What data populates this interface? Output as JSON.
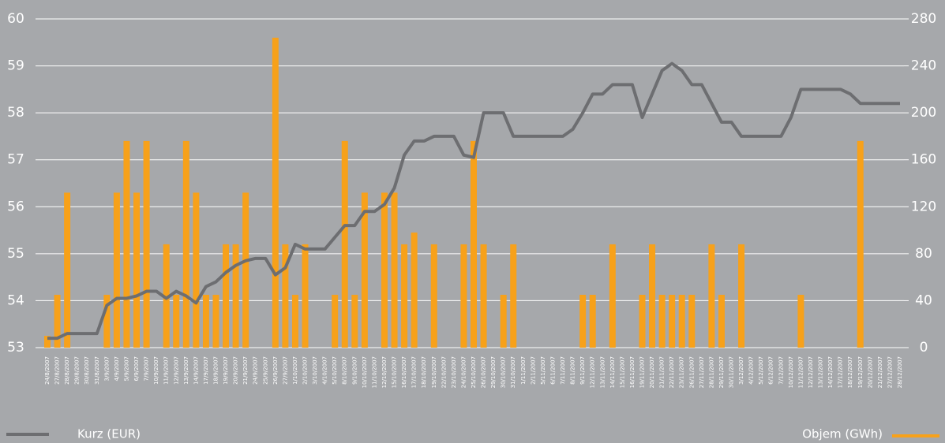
{
  "chart_data": {
    "type": "bar",
    "categories": [
      "24/8/2007",
      "27/8/2007",
      "28/8/2007",
      "29/8/2007",
      "30/8/2007",
      "31/8/2007",
      "3/9/2007",
      "4/9/2007",
      "5/9/2007",
      "6/9/2007",
      "7/9/2007",
      "10/9/2007",
      "11/9/2007",
      "12/9/2007",
      "13/9/2007",
      "14/9/2007",
      "17/9/2007",
      "18/9/2007",
      "19/9/2007",
      "20/9/2007",
      "21/9/2007",
      "24/9/2007",
      "25/9/2007",
      "26/9/2007",
      "27/9/2007",
      "1/10/2007",
      "2/10/2007",
      "3/10/2007",
      "4/10/2007",
      "5/10/2007",
      "8/10/2007",
      "9/10/2007",
      "10/10/2007",
      "11/10/2007",
      "12/10/2007",
      "15/10/2007",
      "16/10/2007",
      "17/10/2007",
      "18/10/2007",
      "19/10/2007",
      "22/10/2007",
      "23/10/2007",
      "24/10/2007",
      "25/10/2007",
      "26/10/2007",
      "29/10/2007",
      "30/10/2007",
      "31/10/2007",
      "1/11/2007",
      "2/11/2007",
      "5/11/2007",
      "6/11/2007",
      "7/11/2007",
      "8/11/2007",
      "9/11/2007",
      "12/11/2007",
      "13/11/2007",
      "14/11/2007",
      "15/11/2007",
      "16/11/2007",
      "19/11/2007",
      "20/11/2007",
      "21/11/2007",
      "22/11/2007",
      "23/11/2007",
      "26/11/2007",
      "27/11/2007",
      "28/11/2007",
      "29/11/2007",
      "30/11/2007",
      "3/12/2007",
      "4/12/2007",
      "5/12/2007",
      "6/12/2007",
      "7/12/2007",
      "10/12/2007",
      "11/12/2007",
      "12/12/2007",
      "13/12/2007",
      "14/12/2007",
      "17/12/2007",
      "18/12/2007",
      "19/12/2007",
      "20/12/2007",
      "21/12/2007",
      "27/12/2007",
      "28/12/2007"
    ],
    "series": [
      {
        "name": "Kurz (EUR)",
        "type": "line",
        "axis": "y",
        "color": "#6d6e71",
        "values": [
          53.2,
          53.2,
          53.3,
          53.3,
          53.3,
          53.3,
          53.9,
          54.05,
          54.05,
          54.1,
          54.2,
          54.2,
          54.05,
          54.2,
          54.1,
          53.95,
          54.3,
          54.4,
          54.6,
          54.75,
          54.85,
          54.9,
          54.9,
          54.55,
          54.7,
          55.2,
          55.1,
          55.1,
          55.1,
          55.35,
          55.6,
          55.6,
          55.9,
          55.9,
          56.05,
          56.4,
          57.1,
          57.4,
          57.4,
          57.5,
          57.5,
          57.5,
          57.1,
          57.05,
          58.0,
          58.0,
          58.0,
          57.5,
          57.5,
          57.5,
          57.5,
          57.5,
          57.5,
          57.65,
          58.0,
          58.4,
          58.4,
          58.6,
          58.6,
          58.6,
          57.9,
          58.4,
          58.9,
          59.05,
          58.9,
          58.6,
          58.6,
          58.2,
          57.8,
          57.8,
          57.5,
          57.5,
          57.5,
          57.5,
          57.5,
          57.9,
          58.5,
          58.5,
          58.5,
          58.5,
          58.5,
          58.4,
          58.2,
          58.2,
          58.2,
          58.2,
          58.2
        ]
      },
      {
        "name": "Objem (GWh)",
        "type": "bar",
        "axis": "y2",
        "color": "#f7a11a",
        "values": [
          10,
          45,
          132,
          0,
          0,
          0,
          45,
          132,
          176,
          132,
          176,
          0,
          88,
          45,
          176,
          132,
          45,
          45,
          88,
          88,
          132,
          0,
          0,
          264,
          88,
          45,
          88,
          0,
          0,
          45,
          176,
          45,
          132,
          0,
          132,
          132,
          88,
          98,
          0,
          88,
          0,
          0,
          88,
          176,
          88,
          0,
          45,
          88,
          0,
          0,
          0,
          0,
          0,
          0,
          45,
          45,
          0,
          88,
          0,
          0,
          45,
          88,
          45,
          45,
          45,
          45,
          0,
          88,
          45,
          0,
          88,
          0,
          0,
          0,
          0,
          0,
          45,
          0,
          0,
          0,
          0,
          0,
          176,
          0,
          0,
          0,
          0
        ]
      }
    ],
    "ylim": [
      53,
      60
    ],
    "yticks": [
      53,
      54,
      55,
      56,
      57,
      58,
      59,
      60
    ],
    "y2lim": [
      0,
      280
    ],
    "y2ticks": [
      0,
      40,
      80,
      120,
      160,
      200,
      240,
      280
    ],
    "grid": true
  }
}
